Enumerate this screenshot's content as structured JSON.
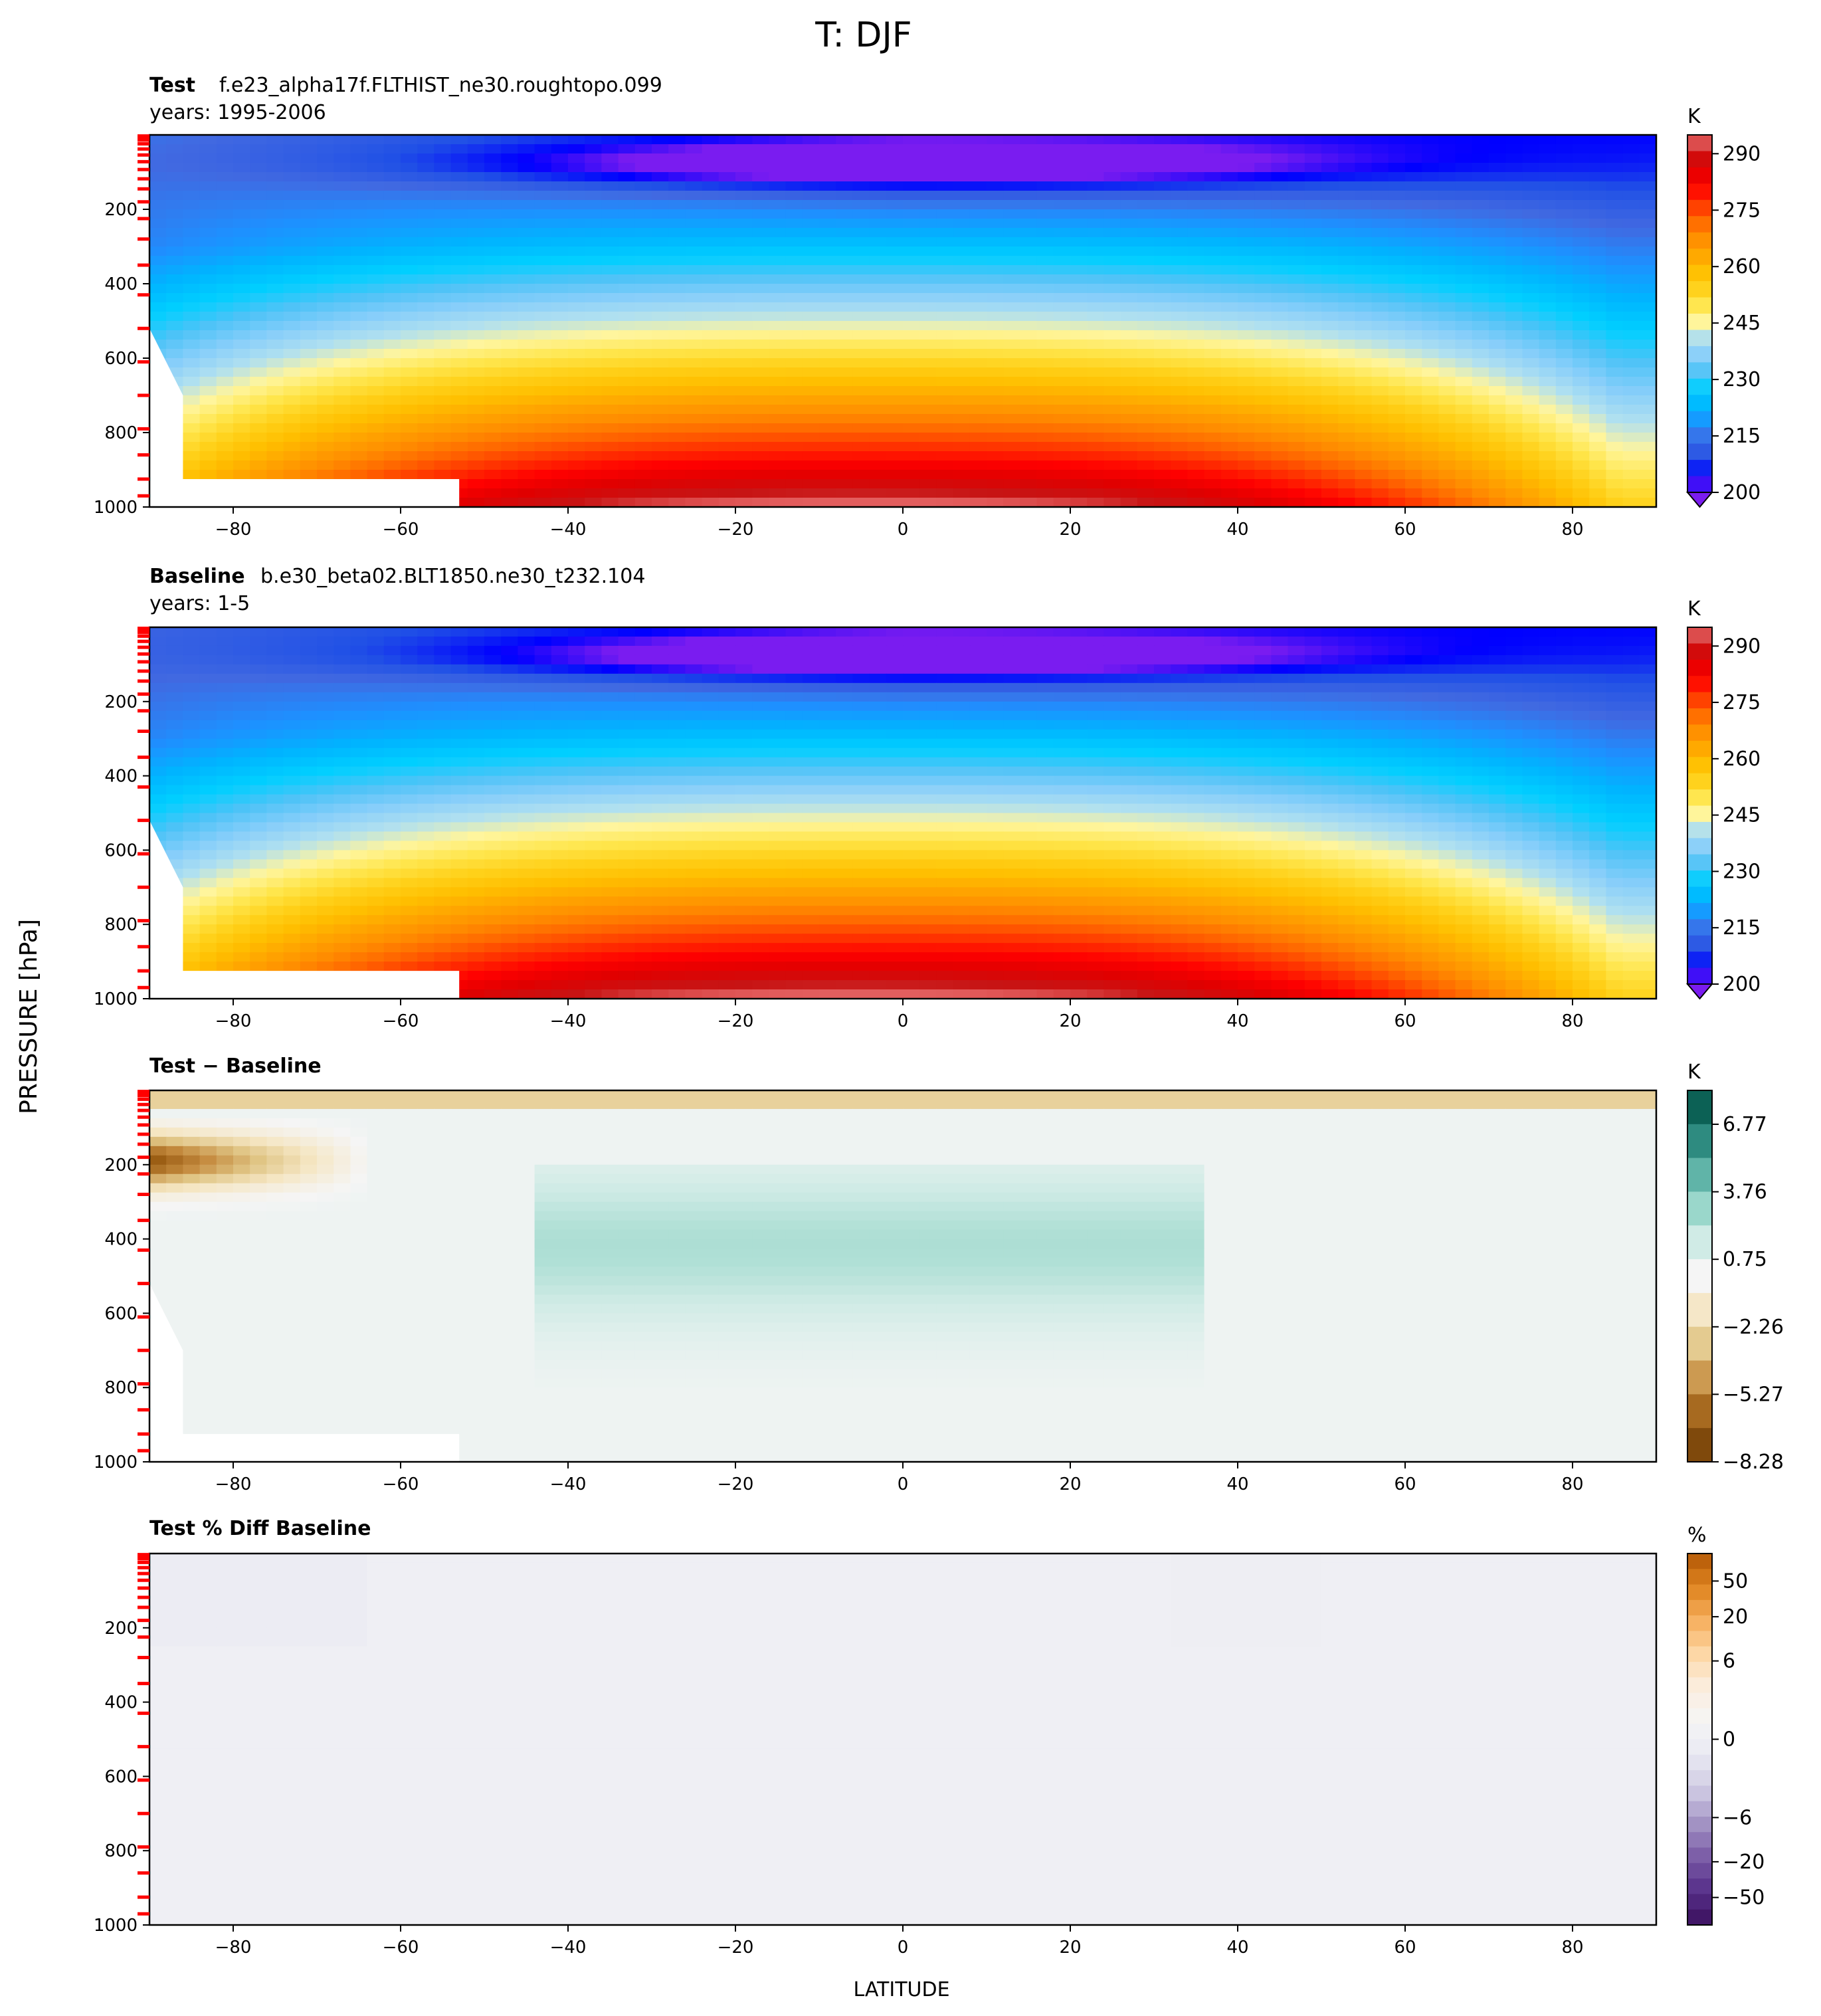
{
  "chart_data": [
    {
      "type": "heatmap",
      "panel": "test",
      "title_bold": "Test",
      "title": "f.e23_alpha17f.FLTHIST_ne30.roughtopo.099",
      "subtitle": "years: 1995-2006",
      "xticks": [
        "−80",
        "−60",
        "−40",
        "−20",
        "0",
        "20",
        "40",
        "60",
        "80"
      ],
      "xtick_values": [
        -80,
        -60,
        -40,
        -20,
        0,
        20,
        40,
        60,
        80
      ],
      "yticks": [
        "200",
        "400",
        "600",
        "800",
        "1000"
      ],
      "ytick_values": [
        200,
        400,
        600,
        800,
        1000
      ],
      "xlim": [
        -90,
        90
      ],
      "ylim": [
        1000,
        0
      ],
      "colorbar_unit": "K",
      "colorbar_ticks": [
        "290",
        "275",
        "260",
        "245",
        "230",
        "215",
        "200"
      ],
      "colorbar_tick_values": [
        290,
        275,
        260,
        245,
        230,
        215,
        200
      ],
      "colorbar_range": [
        200,
        295
      ]
    },
    {
      "type": "heatmap",
      "panel": "baseline",
      "title_bold": "Baseline",
      "title": "b.e30_beta02.BLT1850.ne30_t232.104",
      "subtitle": "years: 1-5",
      "xticks": [
        "−80",
        "−60",
        "−40",
        "−20",
        "0",
        "20",
        "40",
        "60",
        "80"
      ],
      "xtick_values": [
        -80,
        -60,
        -40,
        -20,
        0,
        20,
        40,
        60,
        80
      ],
      "yticks": [
        "200",
        "400",
        "600",
        "800",
        "1000"
      ],
      "ytick_values": [
        200,
        400,
        600,
        800,
        1000
      ],
      "xlim": [
        -90,
        90
      ],
      "ylim": [
        1000,
        0
      ],
      "colorbar_unit": "K",
      "colorbar_ticks": [
        "290",
        "275",
        "260",
        "245",
        "230",
        "215",
        "200"
      ],
      "colorbar_tick_values": [
        290,
        275,
        260,
        245,
        230,
        215,
        200
      ],
      "colorbar_range": [
        200,
        295
      ]
    },
    {
      "type": "heatmap",
      "panel": "diff",
      "title_bold": "Test − Baseline",
      "title": "",
      "subtitle": "",
      "xticks": [
        "−80",
        "−60",
        "−40",
        "−20",
        "0",
        "20",
        "40",
        "60",
        "80"
      ],
      "xtick_values": [
        -80,
        -60,
        -40,
        -20,
        0,
        20,
        40,
        60,
        80
      ],
      "yticks": [
        "200",
        "400",
        "600",
        "800",
        "1000"
      ],
      "ytick_values": [
        200,
        400,
        600,
        800,
        1000
      ],
      "xlim": [
        -90,
        90
      ],
      "ylim": [
        1000,
        0
      ],
      "colorbar_unit": "K",
      "colorbar_ticks": [
        "6.77",
        "3.76",
        "0.75",
        "−2.26",
        "−5.27",
        "−8.28"
      ],
      "colorbar_tick_values": [
        6.77,
        3.76,
        0.75,
        -2.26,
        -5.27,
        -8.28
      ],
      "colorbar_range": [
        -8.28,
        8.28
      ]
    },
    {
      "type": "heatmap",
      "panel": "pctdiff",
      "title_bold": "Test % Diff Baseline",
      "title": "",
      "subtitle": "",
      "xticks": [
        "−80",
        "−60",
        "−40",
        "−20",
        "0",
        "20",
        "40",
        "60",
        "80"
      ],
      "xtick_values": [
        -80,
        -60,
        -40,
        -20,
        0,
        20,
        40,
        60,
        80
      ],
      "yticks": [
        "200",
        "400",
        "600",
        "800",
        "1000"
      ],
      "ytick_values": [
        200,
        400,
        600,
        800,
        1000
      ],
      "xlim": [
        -90,
        90
      ],
      "ylim": [
        1000,
        0
      ],
      "colorbar_unit": "%",
      "colorbar_ticks": [
        "50",
        "20",
        "6",
        "0",
        "−6",
        "−20",
        "−50"
      ],
      "colorbar_tick_values": [
        50,
        20,
        6,
        0,
        -6,
        -20,
        -50
      ],
      "colorbar_range": [
        -100,
        100
      ]
    }
  ],
  "figure": {
    "title": "T: DJF",
    "xlabel": "LATITUDE",
    "ylabel": "PRESSURE [hPa]"
  },
  "colors": {
    "temp_scale": [
      "#7a1cf0",
      "#0000ff",
      "#2050e6",
      "#4169e1",
      "#1e90ff",
      "#00b4ff",
      "#00cfff",
      "#4fc3f7",
      "#87cefa",
      "#b0e0f0",
      "#fff59d",
      "#ffe64d",
      "#ffd11a",
      "#ffbf00",
      "#ffa500",
      "#ff8c00",
      "#ff6600",
      "#ff3300",
      "#ff0000",
      "#e00000",
      "#c71414",
      "#f08080"
    ],
    "diff_scale": [
      "#6b3d0a",
      "#96580f",
      "#c48a3e",
      "#e0c585",
      "#f5e6c3",
      "#f5f5f5",
      "#cceae4",
      "#8fd3c5",
      "#4fa89d",
      "#1b7a6f",
      "#004d40"
    ],
    "pct_scale": [
      "#3b0f5c",
      "#57308a",
      "#7a5ba6",
      "#a393c4",
      "#cfcae3",
      "#e8e8f2",
      "#f5f5f5",
      "#fbeee0",
      "#fdd8a8",
      "#f7b060",
      "#e08520",
      "#b35806"
    ],
    "fill_cold": "#f1f0f6",
    "fill_warm": "#f7f0e6",
    "marker_red": "#ff0000"
  }
}
